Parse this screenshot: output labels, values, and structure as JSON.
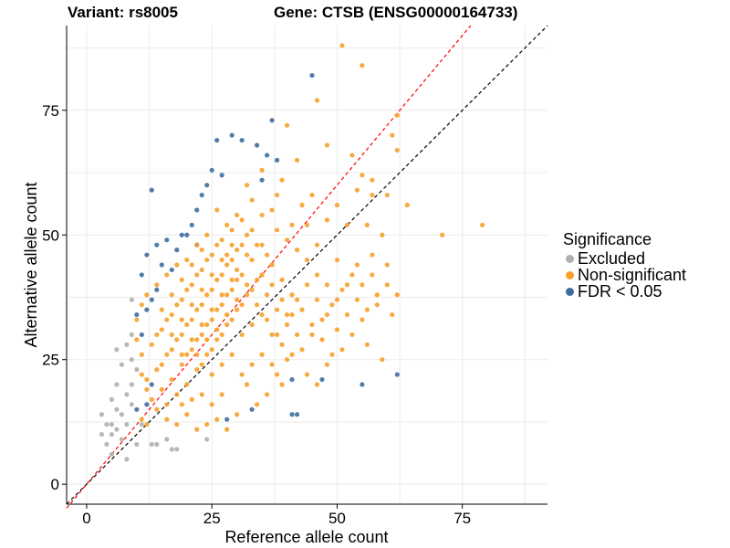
{
  "title_left": "Variant: rs8005",
  "title_right": "Gene: CTSB (ENSG00000164733)",
  "legend": {
    "title": "Significance",
    "items": [
      {
        "label": "Excluded",
        "color": "#b0b0b0"
      },
      {
        "label": "Non-significant",
        "color": "#f7a12a"
      },
      {
        "label": "FDR < 0.05",
        "color": "#3f6e9e"
      }
    ]
  },
  "chart_data": {
    "type": "scatter",
    "title": "Variant: rs8005 | Gene: CTSB (ENSG00000164733)",
    "xlabel": "Reference allele count",
    "ylabel": "Alternative allele count",
    "xlim": [
      -4,
      92
    ],
    "ylim": [
      -4,
      92
    ],
    "xticks": [
      0,
      25,
      50,
      75
    ],
    "yticks": [
      0,
      25,
      50,
      75
    ],
    "grid": true,
    "reference_lines": [
      {
        "name": "identity",
        "slope": 1,
        "intercept": 0,
        "color": "#000000",
        "style": "dashed"
      },
      {
        "name": "fitted",
        "slope": 1.2,
        "intercept": 0,
        "color": "#ff0000",
        "style": "dashed"
      }
    ],
    "series": [
      {
        "name": "Excluded",
        "color": "#b0b0b0",
        "points": [
          [
            3,
            14
          ],
          [
            3,
            10
          ],
          [
            4,
            12
          ],
          [
            4,
            8
          ],
          [
            5,
            12
          ],
          [
            5,
            17
          ],
          [
            5,
            6
          ],
          [
            5,
            10
          ],
          [
            6,
            20
          ],
          [
            6,
            27
          ],
          [
            6,
            15
          ],
          [
            6,
            11
          ],
          [
            7,
            24
          ],
          [
            7,
            14
          ],
          [
            7,
            9
          ],
          [
            8,
            28
          ],
          [
            8,
            18
          ],
          [
            8,
            12
          ],
          [
            8,
            5
          ],
          [
            9,
            30
          ],
          [
            9,
            25
          ],
          [
            9,
            20
          ],
          [
            9,
            16
          ],
          [
            9,
            37
          ],
          [
            10,
            23
          ],
          [
            10,
            8
          ],
          [
            11,
            12
          ],
          [
            13,
            8
          ],
          [
            14,
            8
          ],
          [
            16,
            9
          ],
          [
            17,
            7
          ],
          [
            18,
            7
          ],
          [
            24,
            9
          ]
        ]
      },
      {
        "name": "FDR < 0.05",
        "color": "#3f6e9e",
        "points": [
          [
            45,
            82
          ],
          [
            37,
            73
          ],
          [
            29,
            70
          ],
          [
            31,
            69
          ],
          [
            26,
            69
          ],
          [
            34,
            68
          ],
          [
            36,
            66
          ],
          [
            38,
            65
          ],
          [
            35,
            61
          ],
          [
            27,
            62
          ],
          [
            25,
            63
          ],
          [
            24,
            60
          ],
          [
            23,
            58
          ],
          [
            22,
            55
          ],
          [
            21,
            52
          ],
          [
            20,
            50
          ],
          [
            19,
            50
          ],
          [
            22,
            48
          ],
          [
            18,
            47
          ],
          [
            16,
            49
          ],
          [
            14,
            48
          ],
          [
            12,
            46
          ],
          [
            15,
            44
          ],
          [
            17,
            43
          ],
          [
            11,
            42
          ],
          [
            13,
            59
          ],
          [
            14,
            39
          ],
          [
            13,
            37
          ],
          [
            12,
            35
          ],
          [
            10,
            34
          ],
          [
            11,
            30
          ],
          [
            13,
            20
          ],
          [
            12,
            16
          ],
          [
            10,
            15
          ],
          [
            28,
            13
          ],
          [
            41,
            14
          ],
          [
            42,
            14
          ],
          [
            47,
            21
          ],
          [
            55,
            20
          ],
          [
            62,
            22
          ],
          [
            41,
            21
          ],
          [
            33,
            15
          ]
        ]
      },
      {
        "name": "Non-significant",
        "color": "#f7a12a",
        "points": [
          [
            51,
            88
          ],
          [
            55,
            84
          ],
          [
            46,
            77
          ],
          [
            62,
            74
          ],
          [
            61,
            70
          ],
          [
            62,
            67
          ],
          [
            48,
            68
          ],
          [
            53,
            66
          ],
          [
            55,
            62
          ],
          [
            57,
            61
          ],
          [
            54,
            59
          ],
          [
            57,
            58
          ],
          [
            60,
            58
          ],
          [
            40,
            72
          ],
          [
            42,
            65
          ],
          [
            35,
            63
          ],
          [
            32,
            60
          ],
          [
            38,
            58
          ],
          [
            45,
            58
          ],
          [
            50,
            56
          ],
          [
            48,
            53
          ],
          [
            52,
            52
          ],
          [
            56,
            52
          ],
          [
            59,
            50
          ],
          [
            44,
            52
          ],
          [
            46,
            48
          ],
          [
            50,
            45
          ],
          [
            54,
            44
          ],
          [
            57,
            46
          ],
          [
            60,
            40
          ],
          [
            62,
            38
          ],
          [
            58,
            36
          ],
          [
            61,
            34
          ],
          [
            55,
            33
          ],
          [
            53,
            30
          ],
          [
            56,
            28
          ],
          [
            59,
            25
          ],
          [
            51,
            27
          ],
          [
            48,
            24
          ],
          [
            44,
            22
          ],
          [
            46,
            20
          ],
          [
            40,
            25
          ],
          [
            38,
            22
          ],
          [
            36,
            18
          ],
          [
            34,
            16
          ],
          [
            32,
            20
          ],
          [
            30,
            14
          ],
          [
            28,
            11
          ],
          [
            26,
            13
          ],
          [
            24,
            12
          ],
          [
            22,
            11
          ],
          [
            20,
            14
          ],
          [
            18,
            12
          ],
          [
            16,
            13
          ],
          [
            14,
            15
          ],
          [
            12,
            12
          ],
          [
            11,
            13
          ],
          [
            71,
            50
          ],
          [
            79,
            52
          ],
          [
            64,
            56
          ],
          [
            39,
            61
          ],
          [
            43,
            56
          ],
          [
            41,
            52
          ],
          [
            37,
            55
          ],
          [
            33,
            57
          ],
          [
            30,
            54
          ],
          [
            28,
            52
          ],
          [
            26,
            55
          ],
          [
            24,
            50
          ],
          [
            22,
            48
          ],
          [
            20,
            45
          ],
          [
            18,
            44
          ],
          [
            16,
            42
          ],
          [
            14,
            40
          ],
          [
            12,
            38
          ],
          [
            11,
            36
          ],
          [
            10,
            33
          ],
          [
            10,
            29
          ],
          [
            11,
            26
          ],
          [
            11,
            22
          ],
          [
            12,
            19
          ],
          [
            13,
            17
          ],
          [
            15,
            19
          ],
          [
            17,
            21
          ],
          [
            19,
            24
          ],
          [
            21,
            27
          ],
          [
            23,
            30
          ],
          [
            25,
            33
          ],
          [
            27,
            36
          ],
          [
            29,
            39
          ],
          [
            31,
            42
          ],
          [
            33,
            45
          ],
          [
            35,
            48
          ],
          [
            37,
            44
          ],
          [
            39,
            41
          ],
          [
            41,
            38
          ],
          [
            43,
            35
          ],
          [
            45,
            32
          ],
          [
            47,
            29
          ],
          [
            49,
            26
          ],
          [
            42,
            30
          ],
          [
            40,
            32
          ],
          [
            38,
            35
          ],
          [
            36,
            38
          ],
          [
            34,
            41
          ],
          [
            32,
            38
          ],
          [
            30,
            35
          ],
          [
            28,
            32
          ],
          [
            26,
            29
          ],
          [
            24,
            26
          ],
          [
            22,
            23
          ],
          [
            20,
            20
          ],
          [
            18,
            18
          ],
          [
            16,
            16
          ],
          [
            15,
            24
          ],
          [
            17,
            27
          ],
          [
            19,
            30
          ],
          [
            21,
            33
          ],
          [
            23,
            36
          ],
          [
            25,
            39
          ],
          [
            27,
            42
          ],
          [
            29,
            45
          ],
          [
            31,
            48
          ],
          [
            33,
            51
          ],
          [
            35,
            54
          ],
          [
            31,
            30
          ],
          [
            33,
            32
          ],
          [
            35,
            34
          ],
          [
            37,
            30
          ],
          [
            39,
            28
          ],
          [
            41,
            26
          ],
          [
            43,
            27
          ],
          [
            45,
            30
          ],
          [
            47,
            33
          ],
          [
            49,
            36
          ],
          [
            51,
            39
          ],
          [
            53,
            42
          ],
          [
            55,
            40
          ],
          [
            57,
            42
          ],
          [
            60,
            44
          ],
          [
            58,
            38
          ],
          [
            56,
            35
          ],
          [
            52,
            34
          ],
          [
            50,
            31
          ],
          [
            48,
            40
          ],
          [
            46,
            42
          ],
          [
            44,
            45
          ],
          [
            42,
            47
          ],
          [
            40,
            49
          ],
          [
            38,
            51
          ],
          [
            36,
            46
          ],
          [
            34,
            48
          ],
          [
            32,
            50
          ],
          [
            30,
            47
          ],
          [
            28,
            44
          ],
          [
            26,
            41
          ],
          [
            24,
            38
          ],
          [
            22,
            35
          ],
          [
            20,
            32
          ],
          [
            18,
            29
          ],
          [
            16,
            26
          ],
          [
            14,
            23
          ],
          [
            12,
            21
          ],
          [
            13,
            28
          ],
          [
            15,
            31
          ],
          [
            17,
            34
          ],
          [
            19,
            37
          ],
          [
            21,
            40
          ],
          [
            23,
            43
          ],
          [
            25,
            46
          ],
          [
            27,
            49
          ],
          [
            29,
            51
          ],
          [
            31,
            53
          ],
          [
            25,
            22
          ],
          [
            27,
            24
          ],
          [
            29,
            26
          ],
          [
            31,
            22
          ],
          [
            33,
            24
          ],
          [
            35,
            26
          ],
          [
            37,
            24
          ],
          [
            39,
            20
          ],
          [
            27,
            18
          ],
          [
            25,
            16
          ],
          [
            23,
            18
          ],
          [
            21,
            17
          ],
          [
            19,
            16
          ],
          [
            22,
            26
          ],
          [
            24,
            29
          ],
          [
            26,
            31
          ],
          [
            28,
            34
          ],
          [
            30,
            37
          ],
          [
            32,
            40
          ],
          [
            34,
            36
          ],
          [
            36,
            33
          ],
          [
            38,
            30
          ],
          [
            40,
            34
          ],
          [
            42,
            37
          ],
          [
            44,
            40
          ],
          [
            46,
            37
          ],
          [
            48,
            34
          ],
          [
            50,
            37
          ],
          [
            52,
            40
          ],
          [
            54,
            37
          ],
          [
            23,
            24
          ],
          [
            25,
            27
          ],
          [
            27,
            30
          ],
          [
            29,
            33
          ],
          [
            31,
            36
          ],
          [
            33,
            39
          ],
          [
            35,
            42
          ],
          [
            37,
            40
          ],
          [
            39,
            37
          ],
          [
            41,
            34
          ],
          [
            19,
            26
          ],
          [
            21,
            29
          ],
          [
            23,
            32
          ],
          [
            25,
            35
          ],
          [
            27,
            38
          ],
          [
            29,
            41
          ],
          [
            14,
            30
          ],
          [
            16,
            33
          ],
          [
            18,
            36
          ],
          [
            20,
            39
          ],
          [
            22,
            42
          ],
          [
            24,
            45
          ],
          [
            26,
            48
          ],
          [
            28,
            46
          ],
          [
            30,
            43
          ],
          [
            32,
            46
          ],
          [
            20,
            26
          ],
          [
            22,
            29
          ],
          [
            24,
            32
          ],
          [
            26,
            35
          ],
          [
            28,
            38
          ],
          [
            30,
            41
          ],
          [
            17,
            30
          ],
          [
            19,
            33
          ],
          [
            21,
            36
          ],
          [
            23,
            39
          ],
          [
            25,
            42
          ],
          [
            27,
            45
          ],
          [
            29,
            48
          ],
          [
            15,
            35
          ],
          [
            17,
            38
          ],
          [
            19,
            41
          ],
          [
            21,
            44
          ],
          [
            23,
            47
          ]
        ]
      }
    ]
  }
}
